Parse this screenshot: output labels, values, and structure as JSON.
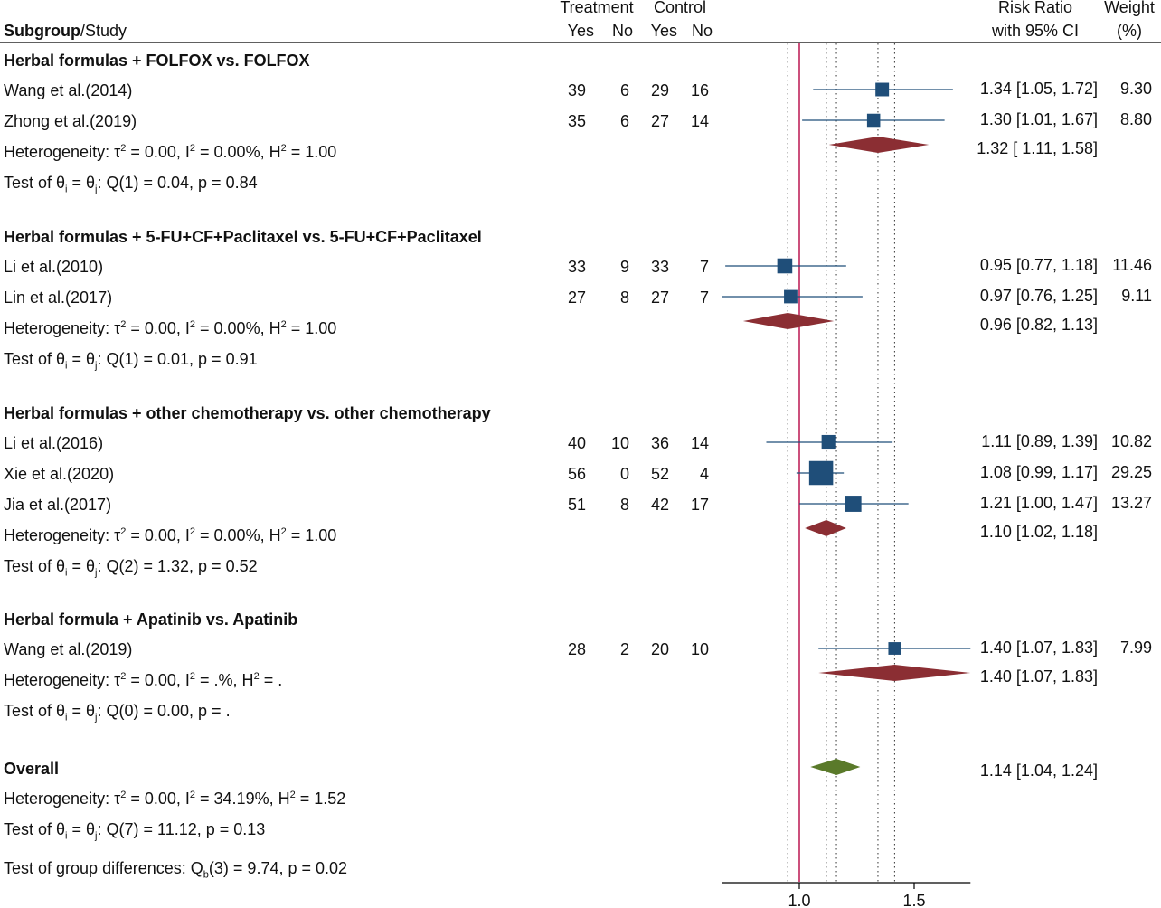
{
  "header": {
    "treatment": "Treatment",
    "control": "Control",
    "subgroup_bold": "Subgroup",
    "study_suffix": "/Study",
    "yes1": "Yes",
    "no1": "No",
    "yes2": "Yes",
    "no2": "No",
    "rr_line1": "Risk Ratio",
    "rr_line2": "with 95% CI",
    "weight_line1": "Weight",
    "weight_line2": "(%)"
  },
  "colors": {
    "square": "#1f4e79",
    "ci_line": "#1f4e79",
    "subgroup_diamond": "#8b2e33",
    "overall_diamond": "#5a7a2a",
    "null_line": "#c0245c",
    "ref_dotted": "#333333"
  },
  "groups": [
    {
      "title": "Herbal formulas + FOLFOX vs. FOLFOX",
      "studies": [
        {
          "name": "Wang et al.(2014)",
          "t_yes": "39",
          "t_no": "6",
          "c_yes": "29",
          "c_no": "16",
          "rr_text": "1.34 [1.05, 1.72]",
          "weight_text": "9.30",
          "rr": 1.34,
          "lo": 1.05,
          "hi": 1.72,
          "weight": 9.3
        },
        {
          "name": "Zhong et al.(2019)",
          "t_yes": "35",
          "t_no": "6",
          "c_yes": "27",
          "c_no": "14",
          "rr_text": "1.30 [1.01, 1.67]",
          "weight_text": "8.80",
          "rr": 1.3,
          "lo": 1.01,
          "hi": 1.67,
          "weight": 8.8
        }
      ],
      "pooled": {
        "rr_text": "1.32 [ 1.11, 1.58]",
        "rr": 1.32,
        "lo": 1.11,
        "hi": 1.58
      },
      "het": {
        "tau": "0.00",
        "i2": "0.00%",
        "h2": "1.00"
      },
      "test": {
        "q": "Q(1) = 0.04, p = 0.84"
      }
    },
    {
      "title": "Herbal formulas + 5-FU+CF+Paclitaxel vs. 5-FU+CF+Paclitaxel",
      "studies": [
        {
          "name": "Li et al.(2010)",
          "t_yes": "33",
          "t_no": "9",
          "c_yes": "33",
          "c_no": "7",
          "rr_text": "0.95 [0.77, 1.18]",
          "weight_text": "11.46",
          "rr": 0.95,
          "lo": 0.77,
          "hi": 1.18,
          "weight": 11.46
        },
        {
          "name": "Lin et al.(2017)",
          "t_yes": "27",
          "t_no": "8",
          "c_yes": "27",
          "c_no": "7",
          "rr_text": "0.97 [0.76, 1.25]",
          "weight_text": "9.11",
          "rr": 0.97,
          "lo": 0.76,
          "hi": 1.25,
          "weight": 9.11
        }
      ],
      "pooled": {
        "rr_text": "0.96 [0.82, 1.13]",
        "rr": 0.96,
        "lo": 0.82,
        "hi": 1.13
      },
      "het": {
        "tau": "0.00",
        "i2": "0.00%",
        "h2": "1.00"
      },
      "test": {
        "q": "Q(1) = 0.01, p = 0.91"
      }
    },
    {
      "title": "Herbal formulas + other chemotherapy vs. other chemotherapy",
      "studies": [
        {
          "name": "Li et al.(2016)",
          "t_yes": "40",
          "t_no": "10",
          "c_yes": "36",
          "c_no": "14",
          "rr_text": "1.11 [0.89, 1.39]",
          "weight_text": "10.82",
          "rr": 1.11,
          "lo": 0.89,
          "hi": 1.39,
          "weight": 10.82
        },
        {
          "name": "Xie et al.(2020)",
          "t_yes": "56",
          "t_no": "0",
          "c_yes": "52",
          "c_no": "4",
          "rr_text": "1.08 [0.99, 1.17]",
          "weight_text": "29.25",
          "rr": 1.08,
          "lo": 0.99,
          "hi": 1.17,
          "weight": 29.25
        },
        {
          "name": "Jia et al.(2017)",
          "t_yes": "51",
          "t_no": "8",
          "c_yes": "42",
          "c_no": "17",
          "rr_text": "1.21 [1.00, 1.47]",
          "weight_text": "13.27",
          "rr": 1.21,
          "lo": 1.0,
          "hi": 1.47,
          "weight": 13.27
        }
      ],
      "pooled": {
        "rr_text": "1.10 [1.02, 1.18]",
        "rr": 1.1,
        "lo": 1.02,
        "hi": 1.18
      },
      "het": {
        "tau": "0.00",
        "i2": "0.00%",
        "h2": "1.00"
      },
      "test": {
        "q": "Q(2) = 1.32, p = 0.52"
      }
    },
    {
      "title": "Herbal formula + Apatinib vs. Apatinib",
      "studies": [
        {
          "name": "Wang et al.(2019)",
          "t_yes": "28",
          "t_no": "2",
          "c_yes": "20",
          "c_no": "10",
          "rr_text": "1.40 [1.07, 1.83]",
          "weight_text": "7.99",
          "rr": 1.4,
          "lo": 1.07,
          "hi": 1.83,
          "weight": 7.99
        }
      ],
      "pooled": {
        "rr_text": "1.40 [1.07, 1.83]",
        "rr": 1.4,
        "lo": 1.07,
        "hi": 1.83
      },
      "het": {
        "tau": "0.00",
        "i2": ".%",
        "h2": "."
      },
      "test": {
        "q": "Q(0) = 0.00, p = ."
      }
    }
  ],
  "overall": {
    "label": "Overall",
    "rr_text": "1.14 [1.04, 1.24]",
    "rr": 1.14,
    "lo": 1.04,
    "hi": 1.24,
    "het": {
      "tau": "0.00",
      "i2": "34.19%",
      "h2": "1.52"
    },
    "test": {
      "q": "Q(7) = 11.12, p = 0.13"
    }
  },
  "group_diff": {
    "prefix": "Test of group differences: Q",
    "sub": "b",
    "rest": "(3) = 9.74, p = 0.02"
  },
  "labels": {
    "het_prefix": "Heterogeneity: τ",
    "test_prefix": "Test of θ",
    "theta_eq": " = θ",
    "sub_i": "i",
    "sub_j": "j"
  },
  "chart_data": {
    "type": "forest",
    "scale": "log",
    "null_value": 1.0,
    "xticks": [
      1.0,
      1.5
    ],
    "xtick_labels": [
      "1.0",
      "1.5"
    ],
    "xlim": [
      0.76,
      1.83
    ],
    "ref_dotted_lines": [
      0.96,
      1.1,
      1.32,
      1.4
    ],
    "groups": [
      {
        "name": "Herbal formulas + FOLFOX vs. FOLFOX",
        "studies": [
          {
            "x": 1.34,
            "lo": 1.05,
            "hi": 1.72
          },
          {
            "x": 1.3,
            "lo": 1.01,
            "hi": 1.67
          }
        ],
        "pooled": {
          "x": 1.32,
          "lo": 1.11,
          "hi": 1.58
        }
      },
      {
        "name": "Herbal formulas + 5-FU+CF+Paclitaxel vs. 5-FU+CF+Paclitaxel",
        "studies": [
          {
            "x": 0.95,
            "lo": 0.77,
            "hi": 1.18
          },
          {
            "x": 0.97,
            "lo": 0.76,
            "hi": 1.25
          }
        ],
        "pooled": {
          "x": 0.96,
          "lo": 0.82,
          "hi": 1.13
        }
      },
      {
        "name": "Herbal formulas + other chemotherapy vs. other chemotherapy",
        "studies": [
          {
            "x": 1.11,
            "lo": 0.89,
            "hi": 1.39
          },
          {
            "x": 1.08,
            "lo": 0.99,
            "hi": 1.17
          },
          {
            "x": 1.21,
            "lo": 1.0,
            "hi": 1.47
          }
        ],
        "pooled": {
          "x": 1.1,
          "lo": 1.02,
          "hi": 1.18
        }
      },
      {
        "name": "Herbal formula + Apatinib vs. Apatinib",
        "studies": [
          {
            "x": 1.4,
            "lo": 1.07,
            "hi": 1.83
          }
        ],
        "pooled": {
          "x": 1.4,
          "lo": 1.07,
          "hi": 1.83
        }
      }
    ],
    "overall": {
      "x": 1.14,
      "lo": 1.04,
      "hi": 1.24
    }
  }
}
